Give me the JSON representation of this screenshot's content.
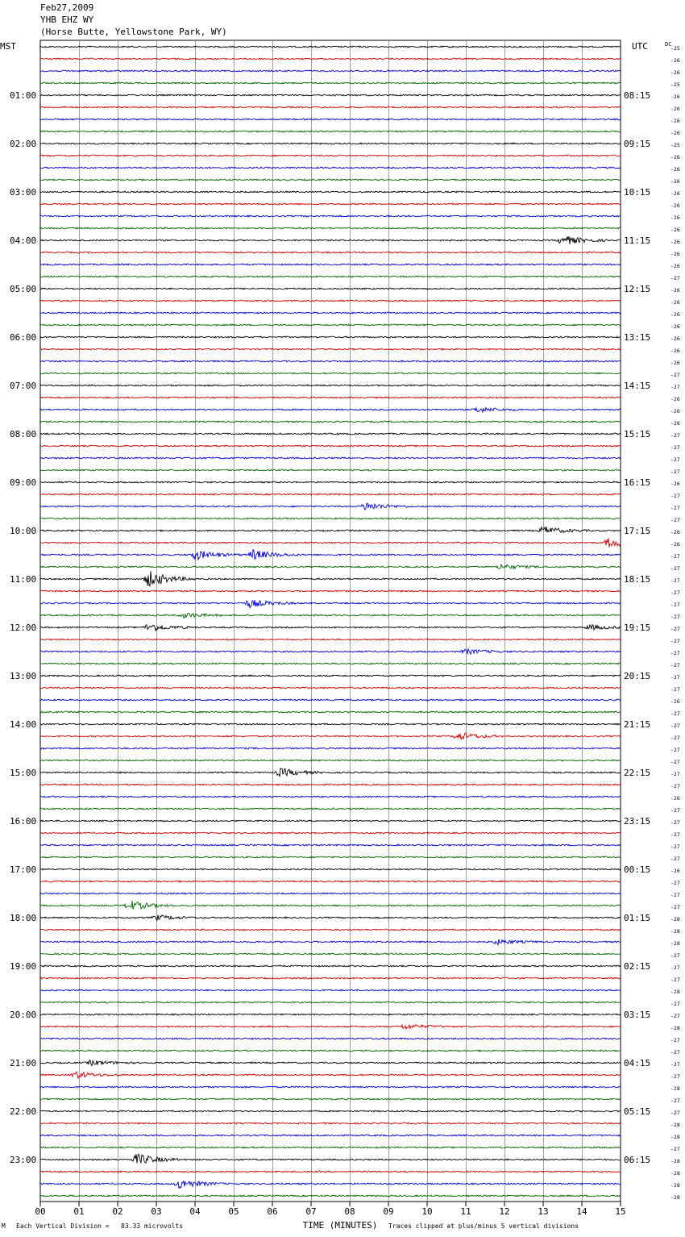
{
  "header": {
    "date": "Feb27,2009",
    "station": "YHB EHZ WY",
    "location": "(Horse Butte, Yellowstone Park, WY)"
  },
  "footer": {
    "scale_note": "Each Vertical Division =   83.33 microvolts",
    "clip_note": "Traces clipped at plus/minus 5 vertical divisions",
    "corner_mark": "M"
  },
  "colors": {
    "trace_cycle": [
      "#000000",
      "#cc0000",
      "#0000cc",
      "#006600"
    ],
    "grid": "#888888"
  },
  "chart_data": {
    "type": "line",
    "title": "",
    "xlabel": "TIME (MINUTES)",
    "left_axis_label": "MST",
    "right_axis_label": "UTC",
    "dc_label": "DC",
    "xlim": [
      0,
      15
    ],
    "x_ticks": [
      "00",
      "01",
      "02",
      "03",
      "04",
      "05",
      "06",
      "07",
      "08",
      "09",
      "10",
      "11",
      "12",
      "13",
      "14",
      "15"
    ],
    "rows": 96,
    "mst_labels": [
      "01:00",
      "02:00",
      "03:00",
      "04:00",
      "05:00",
      "06:00",
      "07:00",
      "08:00",
      "09:00",
      "10:00",
      "11:00",
      "12:00",
      "13:00",
      "14:00",
      "15:00",
      "16:00",
      "17:00",
      "18:00",
      "19:00",
      "20:00",
      "21:00",
      "22:00",
      "23:00"
    ],
    "utc_labels": [
      "08:15",
      "09:15",
      "10:15",
      "11:15",
      "12:15",
      "13:15",
      "14:15",
      "15:15",
      "16:15",
      "17:15",
      "18:15",
      "19:15",
      "20:15",
      "21:15",
      "22:15",
      "23:15",
      "00:15",
      "01:15",
      "02:15",
      "03:15",
      "04:15",
      "05:15",
      "06:15"
    ],
    "dc_offsets": [
      -25,
      -26,
      -26,
      -25,
      -26,
      -26,
      -26,
      -26,
      -25,
      -26,
      -26,
      -26,
      -26,
      -26,
      -26,
      -26,
      -26,
      -26,
      -26,
      -27,
      -26,
      -26,
      -26,
      -26,
      -26,
      -26,
      -26,
      -27,
      -27,
      -26,
      -26,
      -26,
      -27,
      -27,
      -27,
      -27,
      -26,
      -27,
      -27,
      -27,
      -26,
      -26,
      -27,
      -27,
      -27,
      -27,
      -27,
      -27,
      -27,
      -27,
      -27,
      -27,
      -27,
      -27,
      -26,
      -27,
      -27,
      -27,
      -27,
      -27,
      -27,
      -27,
      -26,
      -27,
      -27,
      -27,
      -27,
      -27,
      -26,
      -27,
      -27,
      -27,
      -28,
      -28,
      -28,
      -27,
      -27,
      -27,
      -28,
      -27,
      -27,
      -28,
      -27,
      -27,
      -27,
      -27,
      -28,
      -27,
      -27,
      -28,
      -28,
      -27,
      -28,
      -28,
      -28,
      -28
    ],
    "events": [
      {
        "row": 16,
        "minute": 13.5,
        "amp": 6
      },
      {
        "row": 30,
        "minute": 11.3,
        "amp": 3
      },
      {
        "row": 38,
        "minute": 8.4,
        "amp": 5
      },
      {
        "row": 40,
        "minute": 13.0,
        "amp": 5
      },
      {
        "row": 41,
        "minute": 14.7,
        "amp": 6
      },
      {
        "row": 42,
        "minute": 4.0,
        "amp": 6
      },
      {
        "row": 42,
        "minute": 5.5,
        "amp": 6
      },
      {
        "row": 43,
        "minute": 11.9,
        "amp": 3
      },
      {
        "row": 44,
        "minute": 2.8,
        "amp": 10
      },
      {
        "row": 46,
        "minute": 5.4,
        "amp": 5
      },
      {
        "row": 47,
        "minute": 3.7,
        "amp": 3
      },
      {
        "row": 48,
        "minute": 2.8,
        "amp": 5
      },
      {
        "row": 48,
        "minute": 14.2,
        "amp": 3
      },
      {
        "row": 50,
        "minute": 11.0,
        "amp": 3
      },
      {
        "row": 57,
        "minute": 10.8,
        "amp": 5
      },
      {
        "row": 60,
        "minute": 6.2,
        "amp": 5
      },
      {
        "row": 71,
        "minute": 2.3,
        "amp": 6
      },
      {
        "row": 72,
        "minute": 3.0,
        "amp": 3
      },
      {
        "row": 74,
        "minute": 11.8,
        "amp": 3
      },
      {
        "row": 81,
        "minute": 9.4,
        "amp": 3
      },
      {
        "row": 84,
        "minute": 1.3,
        "amp": 3
      },
      {
        "row": 85,
        "minute": 0.9,
        "amp": 4
      },
      {
        "row": 92,
        "minute": 2.5,
        "amp": 7
      },
      {
        "row": 94,
        "minute": 3.6,
        "amp": 6
      }
    ]
  }
}
